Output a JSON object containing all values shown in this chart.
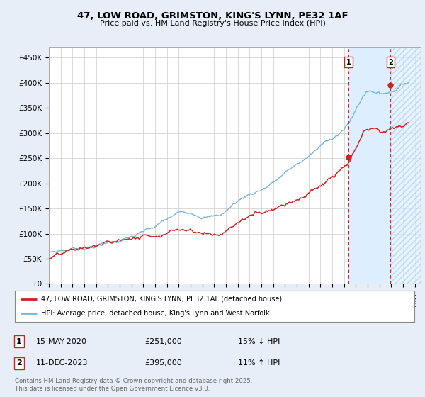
{
  "title": "47, LOW ROAD, GRIMSTON, KING'S LYNN, PE32 1AF",
  "subtitle": "Price paid vs. HM Land Registry's House Price Index (HPI)",
  "ylabel_ticks": [
    "£0",
    "£50K",
    "£100K",
    "£150K",
    "£200K",
    "£250K",
    "£300K",
    "£350K",
    "£400K",
    "£450K"
  ],
  "ytick_values": [
    0,
    50000,
    100000,
    150000,
    200000,
    250000,
    300000,
    350000,
    400000,
    450000
  ],
  "ylim": [
    0,
    470000
  ],
  "xlim_start": 1995.0,
  "xlim_end": 2026.5,
  "hpi_color": "#7ab4d8",
  "price_color": "#cc2222",
  "shade_color": "#ddeeff",
  "marker1_date": 2020.37,
  "marker1_label": "1",
  "marker1_price": 251000,
  "marker1_pct": "15% ↓ HPI",
  "marker1_date_str": "15-MAY-2020",
  "marker2_date": 2023.94,
  "marker2_label": "2",
  "marker2_price": 395000,
  "marker2_pct": "11% ↑ HPI",
  "marker2_date_str": "11-DEC-2023",
  "legend_line1": "47, LOW ROAD, GRIMSTON, KING'S LYNN, PE32 1AF (detached house)",
  "legend_line2": "HPI: Average price, detached house, King's Lynn and West Norfolk",
  "footnote": "Contains HM Land Registry data © Crown copyright and database right 2025.\nThis data is licensed under the Open Government Licence v3.0.",
  "bg_color": "#e8eef8",
  "plot_bg_color": "#ffffff",
  "grid_color": "#cccccc"
}
